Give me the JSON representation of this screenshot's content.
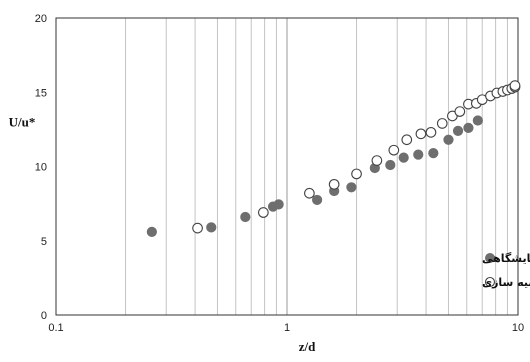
{
  "chart_data": {
    "type": "scatter",
    "xlabel": "z/d",
    "ylabel": "U/u*",
    "xscale": "log",
    "xlim": [
      0.1,
      10
    ],
    "ylim": [
      0,
      20
    ],
    "x_ticks": [
      {
        "value": 0.1,
        "label": "0.1"
      },
      {
        "value": 1,
        "label": "1"
      },
      {
        "value": 10,
        "label": "10"
      }
    ],
    "y_ticks": [
      {
        "value": 0,
        "label": "0"
      },
      {
        "value": 5,
        "label": "5"
      },
      {
        "value": 10,
        "label": "10"
      },
      {
        "value": 15,
        "label": "15"
      },
      {
        "value": 20,
        "label": "20"
      }
    ],
    "grid": "vertical-log-minor",
    "legend_position": "bottom-right",
    "series": [
      {
        "name": "نتایج آزمایشگاهی",
        "marker": "filled-circle",
        "color": "#6e6e6e",
        "points": [
          [
            0.26,
            5.6
          ],
          [
            0.47,
            5.9
          ],
          [
            0.66,
            6.6
          ],
          [
            0.87,
            7.3
          ],
          [
            0.92,
            7.45
          ],
          [
            1.35,
            7.75
          ],
          [
            1.6,
            8.35
          ],
          [
            1.9,
            8.6
          ],
          [
            2.4,
            9.9
          ],
          [
            2.8,
            10.1
          ],
          [
            3.2,
            10.6
          ],
          [
            3.7,
            10.8
          ],
          [
            4.3,
            10.9
          ],
          [
            5.0,
            11.8
          ],
          [
            5.5,
            12.4
          ],
          [
            6.1,
            12.6
          ],
          [
            6.7,
            13.1
          ]
        ]
      },
      {
        "name": "نتایج شبیه سازی",
        "marker": "open-circle",
        "color": "#444444",
        "points": [
          [
            0.41,
            5.85
          ],
          [
            0.79,
            6.9
          ],
          [
            1.25,
            8.2
          ],
          [
            1.6,
            8.8
          ],
          [
            2.0,
            9.5
          ],
          [
            2.45,
            10.4
          ],
          [
            2.9,
            11.1
          ],
          [
            3.3,
            11.8
          ],
          [
            3.8,
            12.2
          ],
          [
            4.2,
            12.3
          ],
          [
            4.7,
            12.9
          ],
          [
            5.2,
            13.4
          ],
          [
            5.6,
            13.7
          ],
          [
            6.1,
            14.2
          ],
          [
            6.6,
            14.25
          ],
          [
            7.0,
            14.5
          ],
          [
            7.6,
            14.75
          ],
          [
            8.1,
            14.95
          ],
          [
            8.6,
            15.05
          ],
          [
            9.0,
            15.15
          ],
          [
            9.4,
            15.25
          ],
          [
            9.8,
            15.35
          ],
          [
            10.3,
            15.45
          ]
        ]
      }
    ]
  }
}
